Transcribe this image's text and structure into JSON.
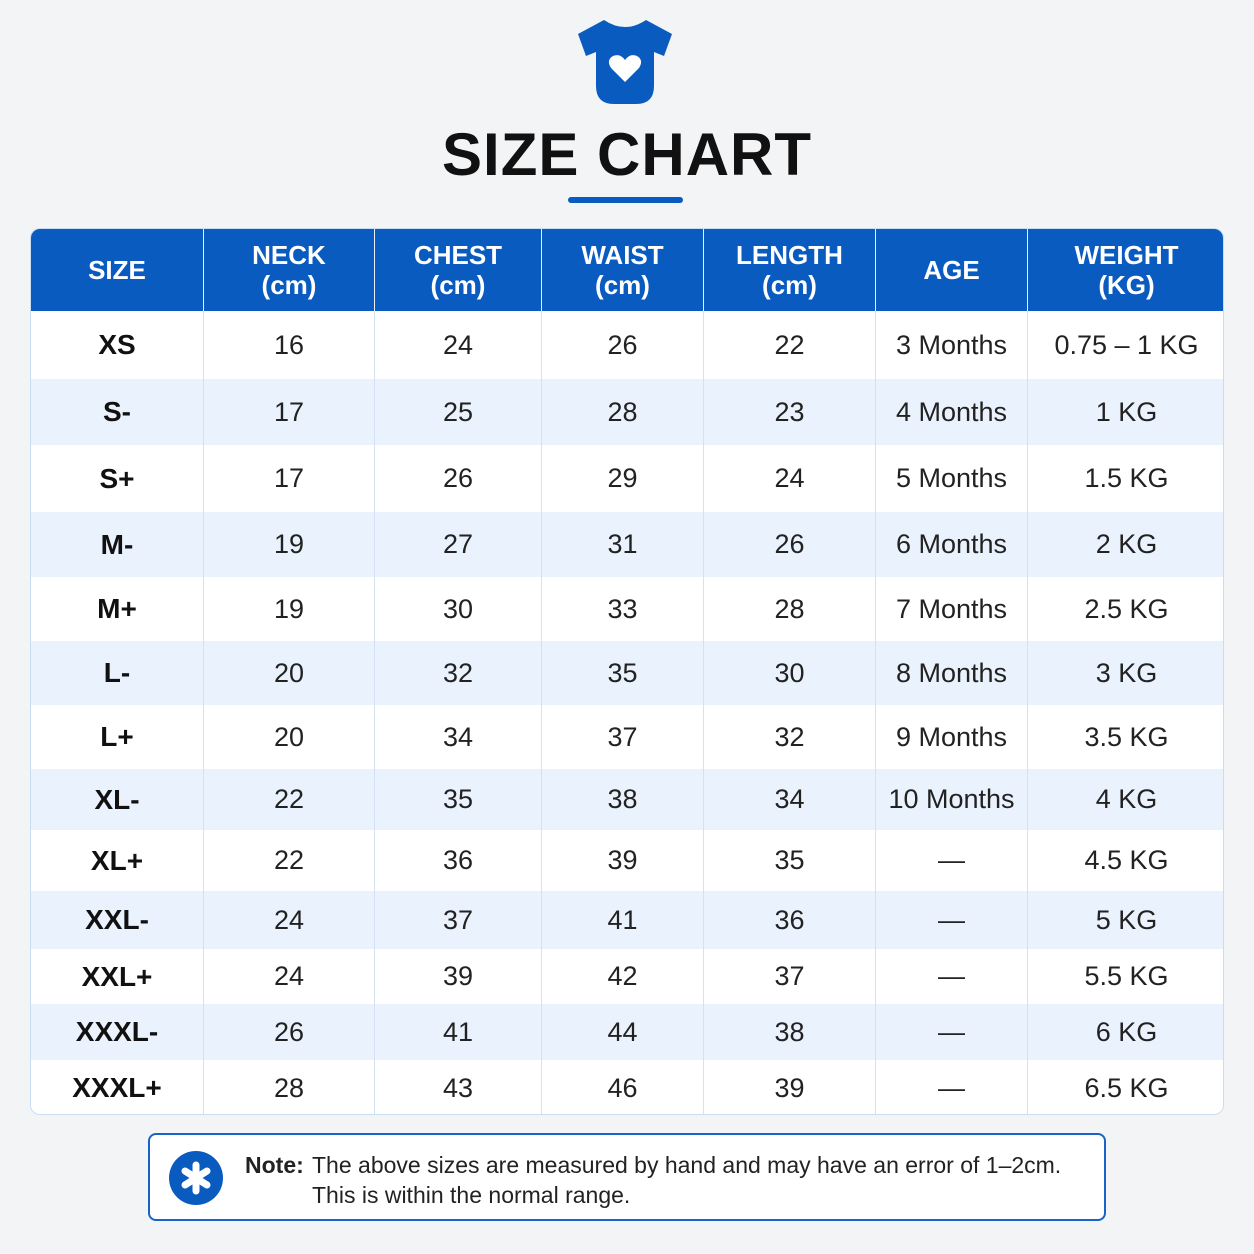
{
  "header": {
    "title": "SIZE CHART"
  },
  "table": {
    "columns": [
      [
        "SIZE"
      ],
      [
        "NECK",
        "(cm)"
      ],
      [
        "CHEST",
        "(cm)"
      ],
      [
        "WAIST",
        "(cm)"
      ],
      [
        "LENGTH",
        "(cm)"
      ],
      [
        "AGE"
      ],
      [
        "WEIGHT",
        "(KG)"
      ]
    ],
    "rows": [
      [
        "XS",
        16,
        24,
        26,
        22,
        "3 Months",
        "0.75 – 1 KG"
      ],
      [
        "S-",
        17,
        25,
        28,
        23,
        "4 Months",
        "1 KG"
      ],
      [
        "S+",
        17,
        26,
        29,
        24,
        "5 Months",
        "1.5 KG"
      ],
      [
        "M-",
        19,
        27,
        31,
        26,
        "6 Months",
        "2 KG"
      ],
      [
        "M+",
        19,
        30,
        33,
        28,
        "7 Months",
        "2.5 KG"
      ],
      [
        "L-",
        20,
        32,
        35,
        30,
        "8 Months",
        "3 KG"
      ],
      [
        "L+",
        20,
        34,
        37,
        32,
        "9 Months",
        "3.5 KG"
      ],
      [
        "XL-",
        22,
        35,
        38,
        34,
        "10 Months",
        "4 KG"
      ],
      [
        "XL+",
        22,
        36,
        39,
        35,
        "—",
        "4.5 KG"
      ],
      [
        "XXL-",
        24,
        37,
        41,
        36,
        "—",
        "5 KG"
      ],
      [
        "XXL+",
        24,
        39,
        42,
        37,
        "—",
        "5.5 KG"
      ],
      [
        "XXXL-",
        26,
        41,
        44,
        38,
        "—",
        "6 KG"
      ],
      [
        "XXXL+",
        28,
        43,
        46,
        39,
        "—",
        "6.5 KG"
      ]
    ]
  },
  "note": {
    "label": "Note:",
    "lines": [
      "The above sizes are measured by hand and may have an error of 1–2cm.",
      "This is within the normal range."
    ]
  }
}
